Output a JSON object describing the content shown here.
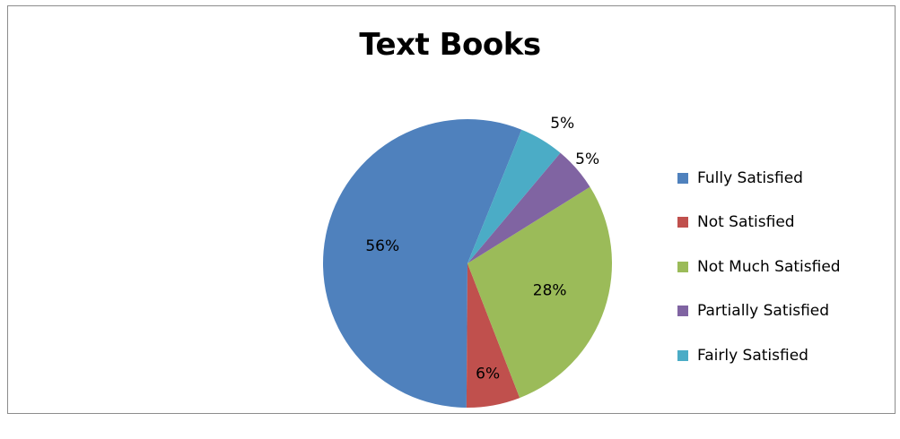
{
  "chart_data": {
    "type": "pie",
    "title": "Text Books",
    "slices": [
      {
        "name": "Fully Satisfied",
        "value": 56,
        "label": "56%",
        "color": "#4f81bd"
      },
      {
        "name": "Not Satisfied",
        "value": 6,
        "label": "6%",
        "color": "#c0504d"
      },
      {
        "name": "Not Much Satisfied",
        "value": 28,
        "label": "28%",
        "color": "#9bbb59"
      },
      {
        "name": "Partially Satisfied",
        "value": 5,
        "label": "5%",
        "color": "#8064a2"
      },
      {
        "name": "Fairly Satisfied",
        "value": 5,
        "label": "5%",
        "color": "#4bacc6"
      }
    ],
    "legend_position": "right"
  }
}
